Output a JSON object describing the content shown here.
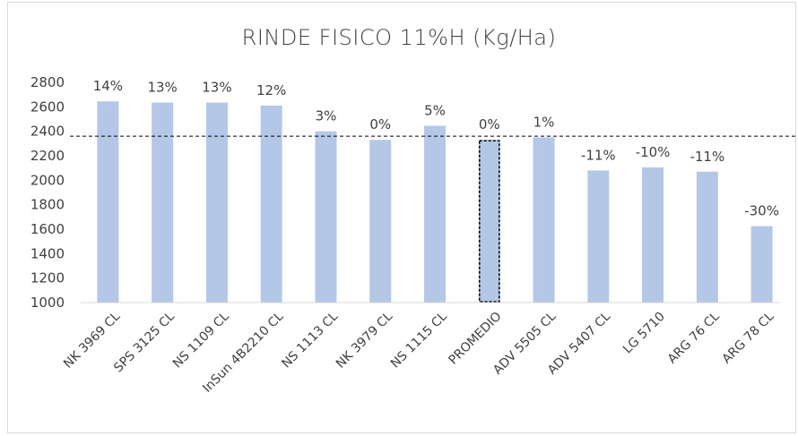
{
  "chart_data": {
    "type": "bar",
    "title": "RINDE FISICO 11%H (Kg/Ha)",
    "xlabel": "",
    "ylabel": "",
    "ylim": [
      1000,
      2800
    ],
    "yticks": [
      1000,
      1200,
      1400,
      1600,
      1800,
      2000,
      2200,
      2400,
      2600,
      2800
    ],
    "categories": [
      "NK 3969 CL",
      "SPS 3125 CL",
      "NS 1109 CL",
      "InSun 4B2210 CL",
      "NS 1113 CL",
      "NK 3979 CL",
      "NS 1115 CL",
      "PROMEDIO",
      "ADV 5505 CL",
      "ADV 5407 CL",
      "LG 5710",
      "ARG 76 CL",
      "ARG 78 CL"
    ],
    "values": [
      2645,
      2635,
      2635,
      2610,
      2400,
      2330,
      2445,
      2330,
      2350,
      2080,
      2105,
      2070,
      1625
    ],
    "data_labels": [
      "14%",
      "13%",
      "13%",
      "12%",
      "3%",
      "0%",
      "5%",
      "0%",
      "1%",
      "-11%",
      "-10%",
      "-11%",
      "-30%"
    ],
    "highlighted_category": "PROMEDIO",
    "reference_line_value": 2360,
    "bar_color": "#b4c7e7",
    "grid": false,
    "legend": "none"
  }
}
